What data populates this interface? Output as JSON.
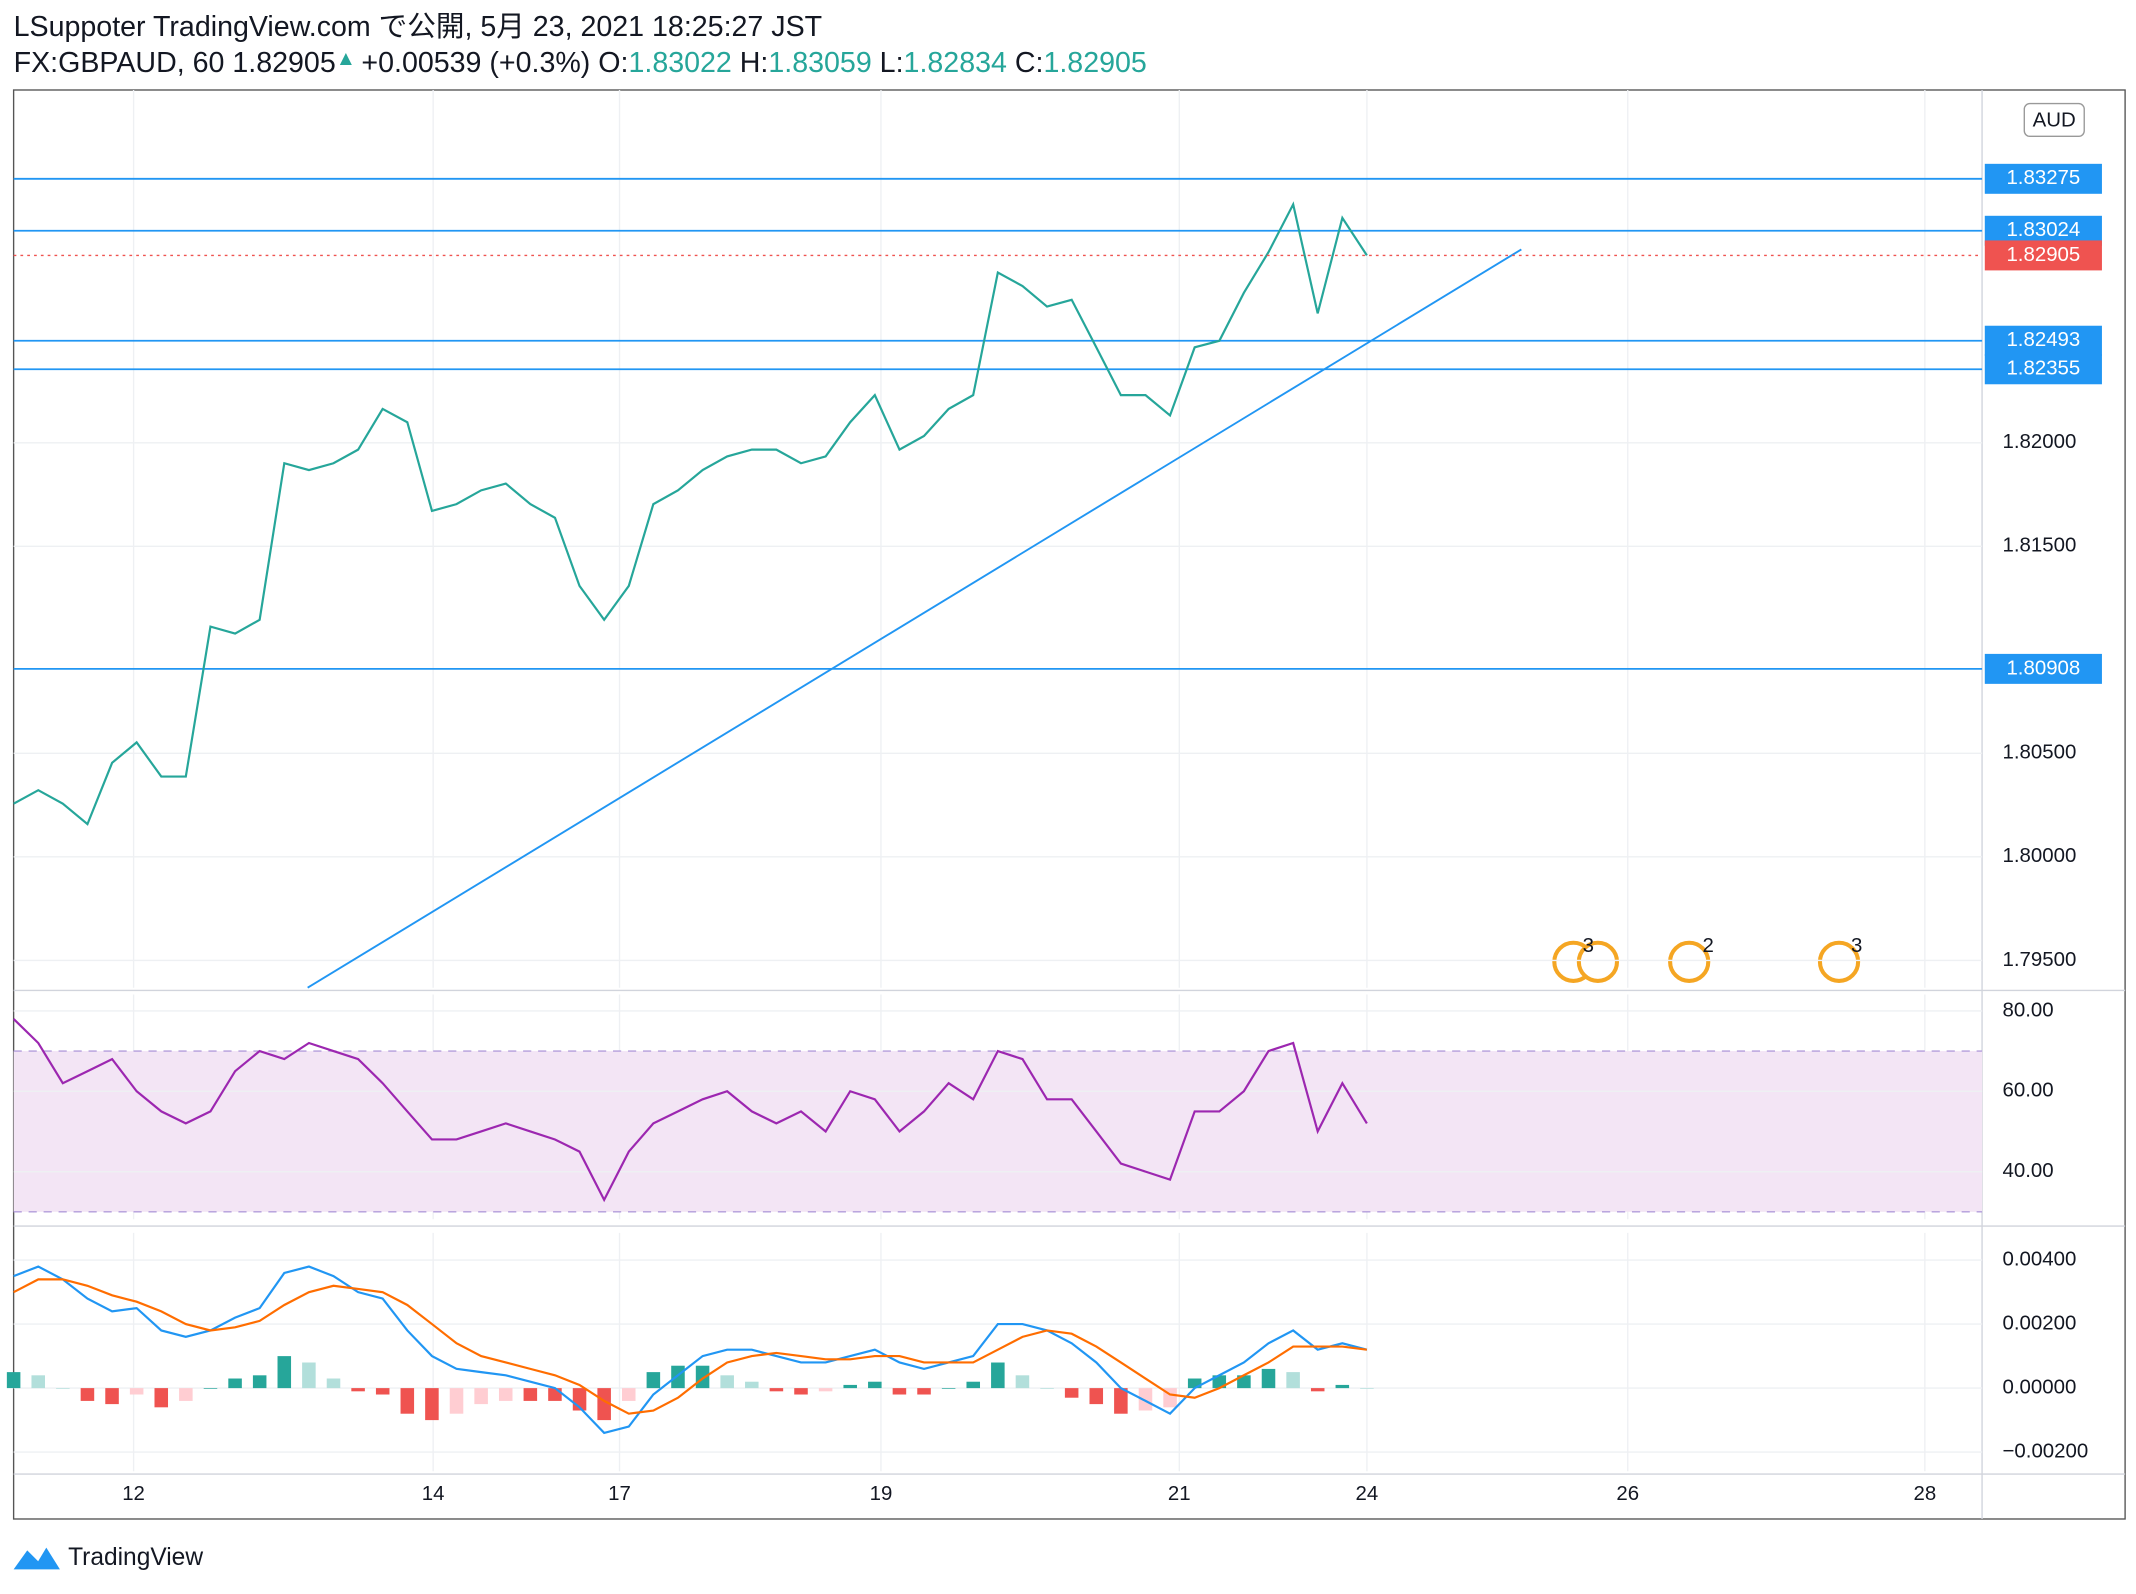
{
  "header": {
    "published": "LSuppoter TradingView.com で公開, 5月 23, 2021 18:25:27 JST",
    "symbol": "FX:GBPAUD, 60 1.82905",
    "change_symbol": "▲",
    "change": "+0.00539 (+0.3%)",
    "o_label": "O:",
    "o": "1.83022",
    "h_label": "H:",
    "h": "1.83059",
    "l_label": "L:",
    "l": "1.82834",
    "c_label": "C:",
    "c": "1.82905"
  },
  "currency": "AUD",
  "events": [
    "3",
    "2",
    "3"
  ],
  "footer": {
    "brand": "TradingView"
  },
  "chart_data": [
    {
      "type": "line",
      "x": [
        0,
        4,
        8,
        12,
        16,
        20,
        24,
        28,
        32,
        36,
        40,
        44,
        48,
        52,
        56,
        60,
        64,
        68,
        72,
        76,
        80,
        84,
        88,
        92,
        96,
        100,
        104,
        108,
        112,
        116,
        120,
        124,
        128,
        132,
        136,
        140,
        144,
        148,
        152,
        156,
        160,
        164,
        168,
        172,
        176,
        180,
        184,
        188,
        192,
        196,
        200,
        204,
        208,
        212,
        216,
        220
      ],
      "series": [
        {
          "color": "#26a69a",
          "values": [
            1.80257,
            1.80322,
            1.80257,
            1.80158,
            1.80454,
            1.80553,
            1.80388,
            1.80388,
            1.81112,
            1.81079,
            1.81145,
            1.81901,
            1.81868,
            1.81901,
            1.81967,
            1.82164,
            1.82099,
            1.81671,
            1.81704,
            1.8177,
            1.81803,
            1.81704,
            1.81638,
            1.81309,
            1.81145,
            1.81309,
            1.81704,
            1.8177,
            1.81868,
            1.81934,
            1.81967,
            1.81967,
            1.81901,
            1.81934,
            1.82099,
            1.8223,
            1.81967,
            1.82033,
            1.82164,
            1.8223,
            1.82822,
            1.82757,
            1.82658,
            1.82691,
            1.82461,
            1.8223,
            1.8223,
            1.82132,
            1.82461,
            1.82493,
            1.82724,
            1.82921,
            1.83151,
            1.82625,
            1.83086,
            1.82905
          ]
        }
      ],
      "xlim": [
        0,
        320
      ],
      "xticks": [
        {
          "value": 19.5,
          "label": "12"
        },
        {
          "value": 68.2,
          "label": "14"
        },
        {
          "value": 98.5,
          "label": "17"
        },
        {
          "value": 141,
          "label": "19"
        },
        {
          "value": 189.5,
          "label": "21"
        },
        {
          "value": 220,
          "label": "24"
        },
        {
          "value": 262.4,
          "label": "26"
        },
        {
          "value": 310.7,
          "label": "28"
        }
      ],
      "ylim": [
        1.79368,
        1.83704
      ],
      "yticks": [
        {
          "value": 1.795,
          "label": "1.79500"
        },
        {
          "value": 1.8,
          "label": "1.80000"
        },
        {
          "value": 1.805,
          "label": "1.80500"
        },
        {
          "value": 1.815,
          "label": "1.81500"
        },
        {
          "value": 1.82,
          "label": "1.82000"
        }
      ],
      "levels": [
        1.83275,
        1.83024,
        1.82493,
        1.82355,
        1.80908
      ],
      "level_color": "#2196f3",
      "last": 1.82905,
      "last_color": "#ef5350",
      "trendline": {
        "x": [
          47.8,
          245.1
        ],
        "y": [
          1.79368,
          1.82934
        ]
      },
      "grid": true
    },
    {
      "type": "line",
      "x": [
        0,
        4,
        8,
        12,
        16,
        20,
        24,
        28,
        32,
        36,
        40,
        44,
        48,
        52,
        56,
        60,
        64,
        68,
        72,
        76,
        80,
        84,
        88,
        92,
        96,
        100,
        104,
        108,
        112,
        116,
        120,
        124,
        128,
        132,
        136,
        140,
        144,
        148,
        152,
        156,
        160,
        164,
        168,
        172,
        176,
        180,
        184,
        188,
        192,
        196,
        200,
        204,
        208,
        212,
        216,
        220
      ],
      "series": [
        {
          "color": "#9c27b0",
          "values": [
            78,
            72,
            62,
            65,
            68,
            60,
            55,
            52,
            55,
            65,
            70,
            68,
            72,
            70,
            68,
            62,
            55,
            48,
            48,
            50,
            52,
            50,
            48,
            45,
            33,
            45,
            52,
            55,
            58,
            60,
            55,
            52,
            55,
            50,
            60,
            58,
            50,
            55,
            62,
            58,
            70,
            68,
            58,
            58,
            50,
            42,
            40,
            38,
            55,
            55,
            60,
            70,
            72,
            50,
            62,
            52
          ]
        }
      ],
      "xlim": [
        0,
        320
      ],
      "ylim": [
        28.14,
        84.07
      ],
      "yticks": [
        {
          "value": 40,
          "label": "40.00"
        },
        {
          "value": 60,
          "label": "60.00"
        },
        {
          "value": 80,
          "label": "80.00"
        }
      ],
      "bands": [
        30,
        70
      ],
      "band_color": "#f3e5f5"
    },
    {
      "type": "line",
      "x": [
        0,
        4,
        8,
        12,
        16,
        20,
        24,
        28,
        32,
        36,
        40,
        44,
        48,
        52,
        56,
        60,
        64,
        68,
        72,
        76,
        80,
        84,
        88,
        92,
        96,
        100,
        104,
        108,
        112,
        116,
        120,
        124,
        128,
        132,
        136,
        140,
        144,
        148,
        152,
        156,
        160,
        164,
        168,
        172,
        176,
        180,
        184,
        188,
        192,
        196,
        200,
        204,
        208,
        212,
        216,
        220
      ],
      "series": [
        {
          "color": "#2196f3",
          "values": [
            0.0035,
            0.0038,
            0.0034,
            0.0028,
            0.0024,
            0.0025,
            0.0018,
            0.0016,
            0.0018,
            0.0022,
            0.0025,
            0.0036,
            0.0038,
            0.0035,
            0.003,
            0.0028,
            0.0018,
            0.001,
            0.0006,
            0.0005,
            0.0004,
            0.0002,
            0,
            -0.0006,
            -0.0014,
            -0.0012,
            -0.0002,
            0.0004,
            0.001,
            0.0012,
            0.0012,
            0.001,
            0.0008,
            0.0008,
            0.001,
            0.0012,
            0.0008,
            0.0006,
            0.0008,
            0.001,
            0.002,
            0.002,
            0.0018,
            0.0014,
            0.0008,
            0,
            -0.0004,
            -0.0008,
            0,
            0.0004,
            0.0008,
            0.0014,
            0.0018,
            0.0012,
            0.0014,
            0.0012
          ]
        },
        {
          "color": "#ff6d00",
          "values": [
            0.003,
            0.0034,
            0.0034,
            0.0032,
            0.0029,
            0.0027,
            0.0024,
            0.002,
            0.0018,
            0.0019,
            0.0021,
            0.0026,
            0.003,
            0.0032,
            0.0031,
            0.003,
            0.0026,
            0.002,
            0.0014,
            0.001,
            0.0008,
            0.0006,
            0.0004,
            0.0001,
            -0.0004,
            -0.0008,
            -0.0007,
            -0.0003,
            0.0003,
            0.0008,
            0.001,
            0.0011,
            0.001,
            0.0009,
            0.0009,
            0.001,
            0.001,
            0.0008,
            0.0008,
            0.0008,
            0.0012,
            0.0016,
            0.0018,
            0.0017,
            0.0013,
            0.0008,
            0.0003,
            -0.0002,
            -0.0003,
            0,
            0.0004,
            0.0008,
            0.0013,
            0.0013,
            0.0013,
            0.0012
          ]
        }
      ],
      "histogram": [
        0.0005,
        0.0004,
        0,
        -0.0004,
        -0.0005,
        -0.0002,
        -0.0006,
        -0.0004,
        0,
        0.0003,
        0.0004,
        0.001,
        0.0008,
        0.0003,
        -0.0001,
        -0.0002,
        -0.0008,
        -0.001,
        -0.0008,
        -0.0005,
        -0.0004,
        -0.0004,
        -0.0004,
        -0.0007,
        -0.001,
        -0.0004,
        0.0005,
        0.0007,
        0.0007,
        0.0004,
        0.0002,
        -0.0001,
        -0.0002,
        -0.0001,
        0.0001,
        0.0002,
        -0.0002,
        -0.0002,
        0,
        0.0002,
        0.0008,
        0.0004,
        0,
        -0.0003,
        -0.0005,
        -0.0008,
        -0.0007,
        -0.0006,
        0.0003,
        0.0004,
        0.0004,
        0.0006,
        0.0005,
        -0.0001,
        0.0001,
        0
      ],
      "xlim": [
        0,
        320
      ],
      "ylim": [
        -0.0026,
        0.00485
      ],
      "yticks": [
        {
          "value": -0.002,
          "label": "−0.00200"
        },
        {
          "value": 0,
          "label": "0.00000"
        },
        {
          "value": 0.002,
          "label": "0.00200"
        },
        {
          "value": 0.004,
          "label": "0.00400"
        }
      ]
    }
  ]
}
